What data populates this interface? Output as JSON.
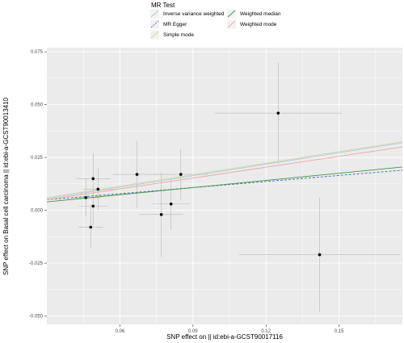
{
  "chart_data": {
    "type": "scatter",
    "xlabel": "SNP effect on  || id:ebi-a-GCST90017116",
    "ylabel": "SNP effect on Basal cell carcinoma || id:ebi-a-GCST90013410",
    "xlim": [
      0.03,
      0.176
    ],
    "ylim": [
      -0.054,
      0.077
    ],
    "x_ticks": [
      0.06,
      0.09,
      0.12,
      0.15
    ],
    "x_tick_labels": [
      "0.06",
      "0.09",
      "0.12",
      "0.15"
    ],
    "y_ticks": [
      -0.05,
      -0.025,
      0.0,
      0.025,
      0.05,
      0.075
    ],
    "y_tick_labels": [
      "-0.050",
      "-0.025",
      "0.000",
      "0.025",
      "0.050",
      "0.075"
    ],
    "grid": true,
    "points": [
      {
        "x": 0.046,
        "y": 0.006,
        "xerr": 0.006,
        "yerr": 0.009
      },
      {
        "x": 0.049,
        "y": 0.015,
        "xerr": 0.007,
        "yerr": 0.012
      },
      {
        "x": 0.049,
        "y": 0.002,
        "xerr": 0.006,
        "yerr": 0.009
      },
      {
        "x": 0.048,
        "y": -0.008,
        "xerr": 0.005,
        "yerr": 0.01
      },
      {
        "x": 0.051,
        "y": 0.01,
        "xerr": 0.006,
        "yerr": 0.01
      },
      {
        "x": 0.067,
        "y": 0.017,
        "xerr": 0.01,
        "yerr": 0.016
      },
      {
        "x": 0.077,
        "y": -0.002,
        "xerr": 0.009,
        "yerr": 0.02
      },
      {
        "x": 0.081,
        "y": 0.003,
        "xerr": 0.008,
        "yerr": 0.012
      },
      {
        "x": 0.085,
        "y": 0.017,
        "xerr": 0.011,
        "yerr": 0.012
      },
      {
        "x": 0.125,
        "y": 0.046,
        "xerr": 0.026,
        "yerr": 0.024
      },
      {
        "x": 0.142,
        "y": -0.021,
        "xerr": 0.033,
        "yerr": 0.027
      }
    ],
    "legend_title": "MR Test",
    "legend_position": "top",
    "series": [
      {
        "name": "Inverse variance weighted",
        "color": "#a6cee3",
        "dash": false,
        "y_left": 0.0055,
        "y_right": 0.032
      },
      {
        "name": "MR Egger",
        "color": "#3c6fb6",
        "dash": true,
        "y_left": 0.005,
        "y_right": 0.019
      },
      {
        "name": "Simple mode",
        "color": "#d8d89a",
        "dash": false,
        "y_left": 0.006,
        "y_right": 0.0325
      },
      {
        "name": "Weighted median",
        "color": "#3a9b3a",
        "dash": false,
        "y_left": 0.004,
        "y_right": 0.0205
      },
      {
        "name": "Weighted mode",
        "color": "#f6a3a0",
        "dash": false,
        "y_left": 0.005,
        "y_right": 0.03
      }
    ]
  }
}
